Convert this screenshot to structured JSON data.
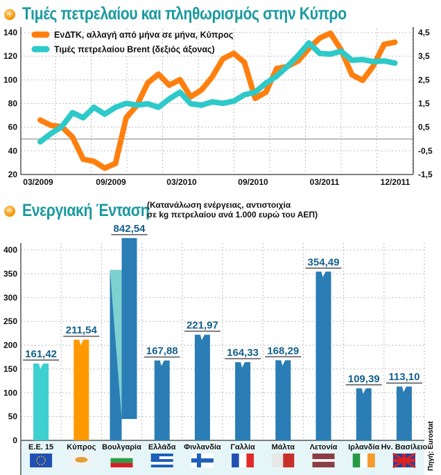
{
  "page": {
    "title1": "Τιμές πετρελαίου και πληθωρισμός στην Κύπρο",
    "title2": "Ενεργιακή Ένταση",
    "subtitle_line1": "(Κατανάλωση ενέργειας, αντιστοιχία",
    "subtitle_line2": "σε kg πετρελαίου ανά 1.000 ευρώ του ΑΕΠ)",
    "source": "Πηγή: Eurostat",
    "icon": "arrow-right-circle-icon"
  },
  "chart_data": [
    {
      "type": "line",
      "title": "Τιμές πετρελαίου και πληθωρισμός στην Κύπρο",
      "x_tick_labels": [
        "03/2009",
        "09/2009",
        "03/2010",
        "09/2010",
        "03/2011",
        "12/2011"
      ],
      "x_start": "03/2009",
      "x_end": "12/2011",
      "y_left": {
        "ticks": [
          20,
          40,
          60,
          80,
          100,
          120,
          140
        ],
        "range": [
          20,
          140
        ]
      },
      "y_right": {
        "ticks": [
          "-1,5",
          "-0,5",
          "0,5",
          "1,5",
          "2,5",
          "3,5",
          "4,5"
        ],
        "range": [
          -1.5,
          4.5
        ]
      },
      "grid": true,
      "legend_position": "top-left",
      "series": [
        {
          "name": "ΕνΔΤΚ, αλλαγή από μήνα σε μήνα, Κύπρος",
          "axis": "left",
          "color": "#ff7f0e",
          "values": [
            66,
            61.5,
            60.4,
            51.6,
            32.9,
            31.1,
            25.3,
            29.3,
            68,
            78.5,
            97.3,
            104.9,
            95.5,
            100.2,
            85.6,
            91.4,
            102.5,
            117.8,
            122.4,
            114.8,
            84.4,
            89.6,
            109.6,
            111.3,
            116,
            126.5,
            135.3,
            139.4,
            125.4,
            104.3,
            99.6,
            111.9,
            130,
            131.8
          ]
        },
        {
          "name": "Τιμές πετρελαίου Brent (δεξιός άξονας)",
          "axis": "right",
          "color": "#2ec9c9",
          "values": [
            -0.12,
            0.23,
            0.52,
            1.11,
            0.9,
            1.34,
            1.05,
            1.34,
            1.51,
            1.43,
            1.49,
            1.34,
            1.69,
            1.98,
            1.49,
            1.43,
            1.57,
            1.51,
            1.6,
            1.87,
            1.98,
            2.36,
            2.66,
            3.07,
            3.53,
            4.06,
            3.62,
            3.59,
            3.71,
            3.33,
            3.36,
            3.27,
            3.3,
            3.21
          ]
        }
      ]
    },
    {
      "type": "bar",
      "title": "Ενεργιακή Ένταση",
      "subtitle": "(Κατανάλωση ενέργειας, αντιστοιχία σε kg πετρελαίου ανά 1.000 ευρώ του ΑΕΠ)",
      "categories": [
        "Ε.Ε. 15",
        "Κύπρος",
        "Βουλγαρία",
        "Ελλάδα",
        "Φινλανδία",
        "Γαλλία",
        "Μάλτα",
        "Λετονία",
        "Ιρλανδία",
        "Ην. Βασίλειο"
      ],
      "values": [
        161.42,
        211.54,
        842.54,
        167.88,
        221.97,
        164.33,
        168.29,
        354.49,
        109.39,
        113.1
      ],
      "value_labels": [
        "161,42",
        "211,54",
        "842,54",
        "167,88",
        "221,97",
        "164,33",
        "168,29",
        "354,49",
        "109,39",
        "113,10"
      ],
      "bar_colors": [
        "#3ecfcf",
        "#ff9900",
        "#2a7db5",
        "#2a7db5",
        "#2a7db5",
        "#2a7db5",
        "#2a7db5",
        "#2a7db5",
        "#2a7db5",
        "#2a7db5"
      ],
      "y_ticks": [
        0,
        50,
        100,
        150,
        200,
        250,
        300,
        350,
        400
      ],
      "ylim": [
        0,
        400
      ],
      "broken_axis_category": "Βουλγαρία",
      "grid": true,
      "source": "Πηγή: Eurostat"
    }
  ]
}
